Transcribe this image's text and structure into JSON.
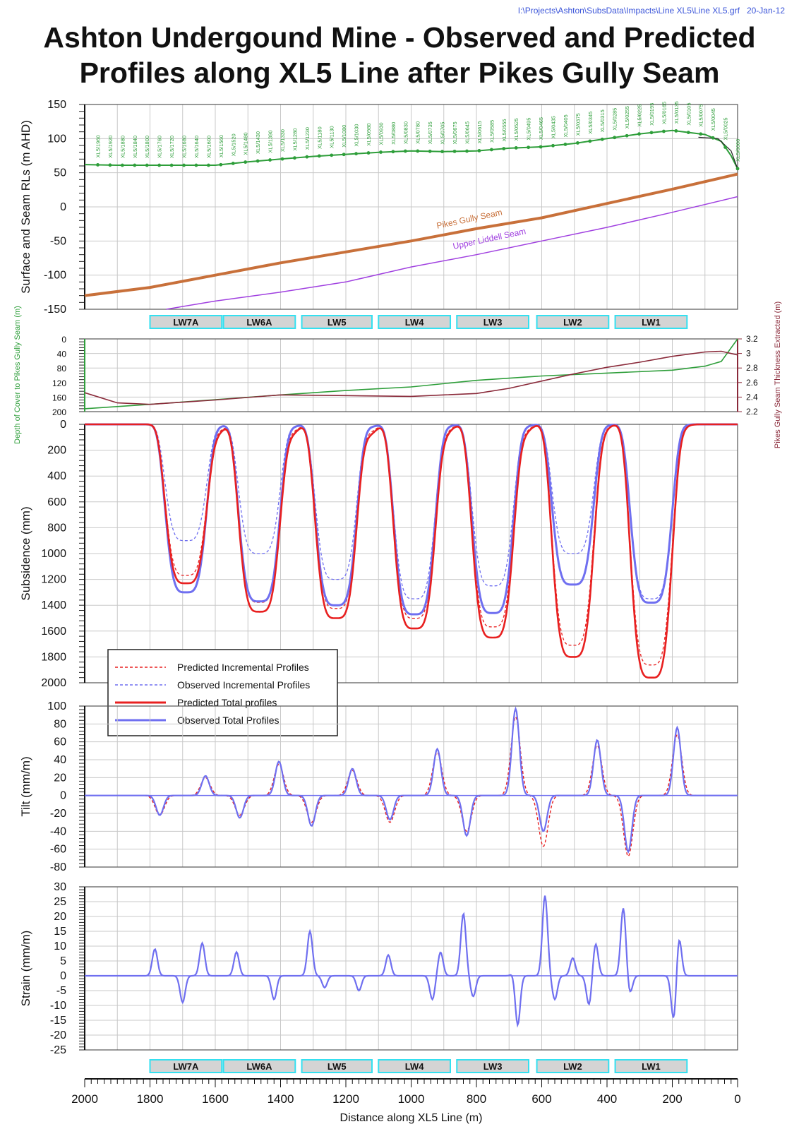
{
  "header": {
    "file_path": "I:\\Projects\\Ashton\\SubsData\\Impacts\\Line XL5\\Line XL5.grf",
    "date": "20-Jan-12",
    "title_line1": "Ashton Undergound Mine - Observed and Predicted",
    "title_line2": "Profiles along XL5 Line after Pikes Gully Seam"
  },
  "colors": {
    "surface": "#2e9e3a",
    "pikes_seam": "#c8703a",
    "liddell_seam": "#a040e0",
    "predicted": "#e82020",
    "observed": "#6f6ff0",
    "thickness": "#8a2a3a",
    "panel_label_bg": "#d4d4d4",
    "panel_label_border": "#34e0f0",
    "grid": "#c8c8c8"
  },
  "longwalls": [
    {
      "label": "LW7A",
      "from": 1800,
      "to": 1580
    },
    {
      "label": "LW6A",
      "from": 1575,
      "to": 1355
    },
    {
      "label": "LW5",
      "from": 1335,
      "to": 1120
    },
    {
      "label": "LW4",
      "from": 1100,
      "to": 880
    },
    {
      "label": "LW3",
      "from": 860,
      "to": 640
    },
    {
      "label": "LW2",
      "from": 615,
      "to": 395
    },
    {
      "label": "LW1",
      "from": 375,
      "to": 155
    }
  ],
  "x_axis": {
    "label": "Distance along XL5 Line (m)",
    "ticks": [
      2000,
      1800,
      1600,
      1400,
      1200,
      1000,
      800,
      600,
      400,
      200,
      0
    ]
  },
  "chart_data": [
    {
      "type": "line",
      "ylabel": "Surface and Seam RLs (m AHD)",
      "ylim": [
        -150,
        150
      ],
      "yticks": [
        150,
        100,
        50,
        0,
        -50,
        -100,
        -150
      ],
      "xlim": [
        2000,
        0
      ],
      "series": [
        {
          "key": "surface",
          "x": [
            2000,
            1900,
            1800,
            1700,
            1600,
            1500,
            1400,
            1300,
            1200,
            1100,
            1000,
            900,
            800,
            700,
            600,
            500,
            400,
            300,
            200,
            100,
            50,
            20,
            0
          ],
          "y": [
            62,
            61,
            61,
            61,
            61,
            66,
            70,
            74,
            77,
            80,
            82,
            81,
            82,
            86,
            88,
            93,
            100,
            107,
            112,
            106,
            96,
            75,
            56
          ]
        },
        {
          "name": "Pikes Gully Seam",
          "key": "pikes_seam",
          "x": [
            2000,
            1800,
            1600,
            1400,
            1200,
            1000,
            800,
            600,
            400,
            200,
            0
          ],
          "y": [
            -130,
            -118,
            -100,
            -82,
            -66,
            -50,
            -32,
            -16,
            5,
            26,
            48
          ]
        },
        {
          "name": "Upper Liddell Seam",
          "key": "liddell_seam",
          "x": [
            1750,
            1600,
            1400,
            1200,
            1000,
            800,
            600,
            400,
            200,
            0
          ],
          "y": [
            -150,
            -138,
            -125,
            -110,
            -88,
            -70,
            -50,
            -30,
            -8,
            15
          ]
        },
        {
          "key": "surface_smooth",
          "x": [
            120,
            60,
            20,
            0
          ],
          "y": [
            102,
            100,
            82,
            56
          ]
        }
      ],
      "annotations": [
        "Pikes Gully Seam",
        "Upper Liddell Seam"
      ],
      "point_labels": [
        "XL5/1960",
        "XL5/1920",
        "XL5/1880",
        "XL5/1840",
        "XL5/1800",
        "XL5/1760",
        "XL5/1720",
        "XL5/1680",
        "XL5/1640",
        "XL5/1600",
        "XL5/1560",
        "XL5/1520",
        "XL5/1480",
        "XL5/1430",
        "XL5/1390",
        "XL5/1330",
        "XL5/1280",
        "XL5/1230",
        "XL5/1180",
        "XL5/1130",
        "XL5/1080",
        "XL5/1030",
        "XL5/0980",
        "XL5/0930",
        "XL5/0880",
        "XL5/0830",
        "XL5/0780",
        "XL5/0735",
        "XL5/0705",
        "XL5/0675",
        "XL5/0645",
        "XL5/0615",
        "XL5/0585",
        "XL5/0555",
        "XL5/0525",
        "XL5/0495",
        "XL5/0465",
        "XL5/0435",
        "XL5/0405",
        "XL5/0375",
        "XL5/0345",
        "XL5/0315",
        "XL5/0285",
        "XL5/0255",
        "XL5/0225",
        "XL5/0195",
        "XL5/0165",
        "XL5/0135",
        "XL5/0105",
        "XL5/0075",
        "XL5/0045",
        "XL5/0025",
        "XL5/0000"
      ]
    },
    {
      "type": "line",
      "ylabel": "Depth of Cover to Pikes Gully Seam (m)",
      "ylabel_right": "Pikes Gully Seam Thickness Extracted (m)",
      "ylim_left": [
        0,
        200
      ],
      "yticks_left": [
        0,
        40,
        80,
        120,
        160,
        200
      ],
      "ylim_right": [
        2.2,
        3.2
      ],
      "yticks_right": [
        3.2,
        3,
        2.8,
        2.6,
        2.4,
        2.2
      ],
      "series": [
        {
          "key": "surface",
          "axis": "left",
          "x": [
            2000,
            1800,
            1600,
            1400,
            1200,
            1000,
            800,
            600,
            400,
            200,
            100,
            50,
            0
          ],
          "y": [
            192,
            180,
            167,
            154,
            142,
            132,
            114,
            102,
            94,
            86,
            75,
            62,
            0
          ]
        },
        {
          "key": "thickness",
          "axis": "right",
          "x": [
            2000,
            1900,
            1800,
            1600,
            1400,
            1200,
            1000,
            900,
            800,
            700,
            600,
            500,
            400,
            300,
            200,
            100,
            50,
            0
          ],
          "y": [
            2.46,
            2.32,
            2.3,
            2.36,
            2.43,
            2.42,
            2.41,
            2.43,
            2.45,
            2.52,
            2.62,
            2.72,
            2.81,
            2.88,
            2.96,
            3.02,
            3.03,
            2.98
          ]
        }
      ]
    },
    {
      "type": "line",
      "ylabel": "Subsidence (mm)",
      "ylim": [
        0,
        2000
      ],
      "inverted": true,
      "yticks": [
        0,
        200,
        400,
        600,
        800,
        1000,
        1200,
        1400,
        1600,
        1800,
        2000
      ],
      "legend": {
        "placement": "bottom-left",
        "entries": [
          {
            "label": "Predicted Incremental Profiles",
            "key": "predicted",
            "dash": true
          },
          {
            "label": "Observed Incremental Profiles",
            "key": "observed",
            "dash": true
          },
          {
            "label": "Predicted Total profiles",
            "key": "predicted",
            "dash": false
          },
          {
            "label": "Observed Total Profiles",
            "key": "observed",
            "dash": false
          }
        ]
      },
      "troughs": [
        {
          "center": 1690,
          "pred_total": 1230,
          "obs_total": 1300,
          "obs_incr": 900
        },
        {
          "center": 1465,
          "pred_total": 1450,
          "obs_total": 1370,
          "obs_incr": 1000
        },
        {
          "center": 1230,
          "pred_total": 1500,
          "obs_total": 1400,
          "obs_incr": 1200
        },
        {
          "center": 990,
          "pred_total": 1580,
          "obs_total": 1470,
          "obs_incr": 1350
        },
        {
          "center": 750,
          "pred_total": 1650,
          "obs_total": 1460,
          "obs_incr": 1250
        },
        {
          "center": 505,
          "pred_total": 1800,
          "obs_total": 1240,
          "obs_incr": 1000
        },
        {
          "center": 265,
          "pred_total": 1960,
          "obs_total": 1380,
          "obs_incr": 1350
        }
      ],
      "peaks": [
        1600,
        1370,
        1130,
        900,
        660,
        425,
        190
      ]
    },
    {
      "type": "line",
      "ylabel": "Tilt (mm/m)",
      "ylim": [
        -80,
        100
      ],
      "yticks": [
        100,
        80,
        60,
        40,
        20,
        0,
        -20,
        -40,
        -60,
        -80
      ],
      "spikes_observed": [
        {
          "x": 1770,
          "v": -22
        },
        {
          "x": 1630,
          "v": 22
        },
        {
          "x": 1525,
          "v": -25
        },
        {
          "x": 1405,
          "v": 38
        },
        {
          "x": 1305,
          "v": -34
        },
        {
          "x": 1180,
          "v": 30
        },
        {
          "x": 1065,
          "v": -27
        },
        {
          "x": 920,
          "v": 52
        },
        {
          "x": 830,
          "v": -45
        },
        {
          "x": 680,
          "v": 97
        },
        {
          "x": 595,
          "v": -40
        },
        {
          "x": 430,
          "v": 62
        },
        {
          "x": 335,
          "v": -63
        },
        {
          "x": 185,
          "v": 76
        }
      ],
      "spikes_predicted": [
        {
          "x": 1770,
          "v": -22
        },
        {
          "x": 1630,
          "v": 20
        },
        {
          "x": 1525,
          "v": -22
        },
        {
          "x": 1405,
          "v": 35
        },
        {
          "x": 1305,
          "v": -30
        },
        {
          "x": 1180,
          "v": 28
        },
        {
          "x": 1065,
          "v": -30
        },
        {
          "x": 920,
          "v": 48
        },
        {
          "x": 830,
          "v": -40
        },
        {
          "x": 680,
          "v": 88
        },
        {
          "x": 595,
          "v": -57
        },
        {
          "x": 430,
          "v": 56
        },
        {
          "x": 335,
          "v": -68
        },
        {
          "x": 185,
          "v": 68
        }
      ]
    },
    {
      "type": "line",
      "ylabel": "Strain (mm/m)",
      "ylim": [
        -25,
        30
      ],
      "yticks": [
        30,
        25,
        20,
        15,
        10,
        5,
        0,
        -5,
        -10,
        -15,
        -20,
        -25
      ],
      "spikes_observed": [
        {
          "x": 1785,
          "v": 9
        },
        {
          "x": 1700,
          "v": -9
        },
        {
          "x": 1640,
          "v": 11
        },
        {
          "x": 1535,
          "v": 8
        },
        {
          "x": 1420,
          "v": -8
        },
        {
          "x": 1310,
          "v": 15
        },
        {
          "x": 1265,
          "v": -4
        },
        {
          "x": 1160,
          "v": -5
        },
        {
          "x": 1070,
          "v": 7
        },
        {
          "x": 935,
          "v": -8
        },
        {
          "x": 910,
          "v": 8
        },
        {
          "x": 840,
          "v": 21
        },
        {
          "x": 810,
          "v": -7
        },
        {
          "x": 675,
          "v": -22
        },
        {
          "x": 680,
          "v": 7
        },
        {
          "x": 590,
          "v": 27
        },
        {
          "x": 560,
          "v": -8
        },
        {
          "x": 505,
          "v": 6
        },
        {
          "x": 455,
          "v": -10
        },
        {
          "x": 435,
          "v": 11
        },
        {
          "x": 350,
          "v": 23
        },
        {
          "x": 330,
          "v": -6
        },
        {
          "x": 195,
          "v": -16
        },
        {
          "x": 180,
          "v": 14
        }
      ]
    }
  ]
}
